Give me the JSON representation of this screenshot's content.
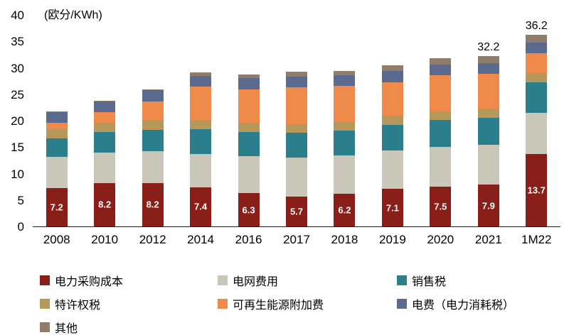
{
  "chart_data": {
    "type": "bar",
    "stacked": true,
    "unit_label": "(欧分/KWh)",
    "title": "",
    "xlabel": "",
    "ylabel": "欧分/KWh",
    "ylim": [
      0,
      40
    ],
    "yticks": [
      0,
      5,
      10,
      15,
      20,
      25,
      30,
      35,
      40
    ],
    "grid": false,
    "legend_position": "bottom",
    "categories": [
      "2008",
      "2010",
      "2012",
      "2014",
      "2016",
      "2017",
      "2018",
      "2019",
      "2020",
      "2021",
      "1M22"
    ],
    "bar_labels": [
      "7.2",
      "8.2",
      "8.2",
      "7.4",
      "6.3",
      "5.7",
      "6.2",
      "7.1",
      "7.5",
      "7.9",
      "13.7"
    ],
    "total_labels": [
      "",
      "",
      "",
      "",
      "",
      "",
      "",
      "",
      "",
      "32.2",
      "36.2"
    ],
    "series": [
      {
        "name": "电力采购成本",
        "color": "#8a1e18",
        "values": [
          7.2,
          8.2,
          8.2,
          7.4,
          6.3,
          5.7,
          6.2,
          7.1,
          7.5,
          7.9,
          13.7
        ]
      },
      {
        "name": "电网费用",
        "color": "#cbc7b8",
        "values": [
          5.9,
          5.8,
          6.0,
          6.3,
          7.0,
          7.3,
          7.2,
          7.2,
          7.5,
          7.5,
          7.8
        ]
      },
      {
        "name": "销售税",
        "color": "#2b7e8c",
        "values": [
          3.5,
          3.8,
          4.1,
          4.7,
          4.6,
          4.7,
          4.7,
          4.9,
          5.1,
          5.2,
          5.8
        ]
      },
      {
        "name": "特许权税",
        "color": "#b6995a",
        "values": [
          1.8,
          1.8,
          1.8,
          1.8,
          1.7,
          1.7,
          1.7,
          1.7,
          1.7,
          1.7,
          1.7
        ]
      },
      {
        "name": "可再生能源附加费",
        "color": "#ef8a4b",
        "values": [
          1.2,
          2.05,
          3.59,
          6.24,
          6.35,
          6.88,
          6.79,
          6.41,
          6.76,
          6.5,
          3.72
        ]
      },
      {
        "name": "电费（电力消耗税）",
        "color": "#5b6b8f",
        "values": [
          2.05,
          2.05,
          2.05,
          2.05,
          2.05,
          2.05,
          2.05,
          2.05,
          2.05,
          2.05,
          2.05
        ]
      },
      {
        "name": "其他",
        "color": "#8f7c6b",
        "values": [
          0.1,
          0.1,
          0.2,
          0.6,
          0.8,
          0.9,
          0.8,
          1.1,
          1.2,
          1.35,
          1.43
        ]
      }
    ]
  }
}
